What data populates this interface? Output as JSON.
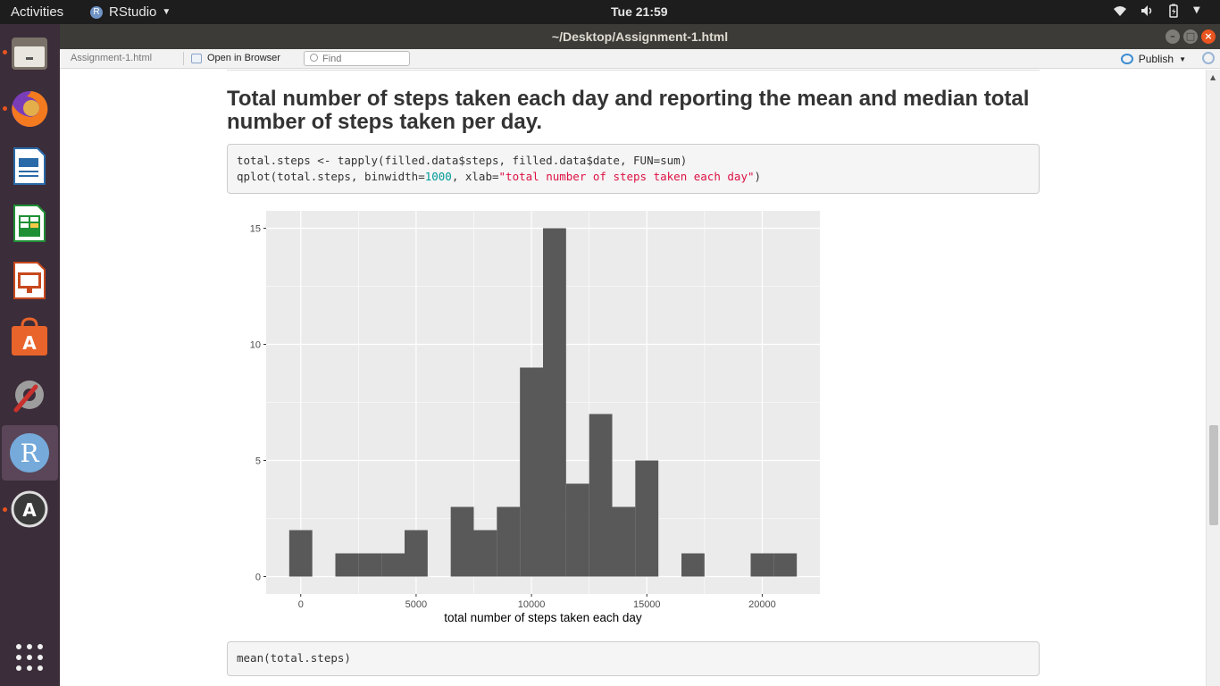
{
  "topbar": {
    "activities": "Activities",
    "app_name": "RStudio",
    "clock": "Tue 21:59"
  },
  "window": {
    "title": "~/Desktop/Assignment-1.html"
  },
  "toolbar": {
    "file_label": "Assignment-1.html",
    "open_in_browser": "Open in Browser",
    "find_placeholder": "Find",
    "publish": "Publish"
  },
  "launcher": {
    "items": [
      "files-icon",
      "firefox-icon",
      "writer-icon",
      "calc-icon",
      "impress-icon",
      "software-center-icon",
      "settings-icon",
      "rstudio-icon",
      "updater-icon",
      "show-apps-icon"
    ]
  },
  "document": {
    "heading": "Total number of steps taken each day and reporting the mean and median total number of steps taken per day.",
    "code1_line1": "total.steps <- tapply(filled.data$steps, filled.data$date, FUN=sum)",
    "code1_line2_pre": "qplot(total.steps, binwidth=",
    "code1_line2_num": "1000",
    "code1_line2_mid": ", xlab=",
    "code1_line2_str": "\"total number of steps taken each day\"",
    "code1_line2_post": ")",
    "code2": "mean(total.steps)"
  },
  "colors": {
    "panel": "#ebebeb",
    "bar": "#595959",
    "grid": "#ffffff"
  },
  "chart_data": {
    "type": "bar",
    "title": "",
    "xlabel": "total number of steps taken each day",
    "ylabel": "",
    "x_ticks": [
      0,
      5000,
      10000,
      15000,
      20000
    ],
    "y_ticks": [
      0,
      5,
      10,
      15
    ],
    "xlim": [
      -1500,
      22500
    ],
    "ylim": [
      -0.75,
      15.75
    ],
    "binwidth": 1000,
    "bins": [
      {
        "center": 0,
        "count": 2
      },
      {
        "center": 2000,
        "count": 1
      },
      {
        "center": 3000,
        "count": 1
      },
      {
        "center": 4000,
        "count": 1
      },
      {
        "center": 5000,
        "count": 2
      },
      {
        "center": 7000,
        "count": 3
      },
      {
        "center": 8000,
        "count": 2
      },
      {
        "center": 9000,
        "count": 3
      },
      {
        "center": 10000,
        "count": 9
      },
      {
        "center": 11000,
        "count": 15
      },
      {
        "center": 12000,
        "count": 4
      },
      {
        "center": 13000,
        "count": 7
      },
      {
        "center": 14000,
        "count": 3
      },
      {
        "center": 15000,
        "count": 5
      },
      {
        "center": 17000,
        "count": 1
      },
      {
        "center": 20000,
        "count": 1
      },
      {
        "center": 21000,
        "count": 1
      }
    ]
  }
}
